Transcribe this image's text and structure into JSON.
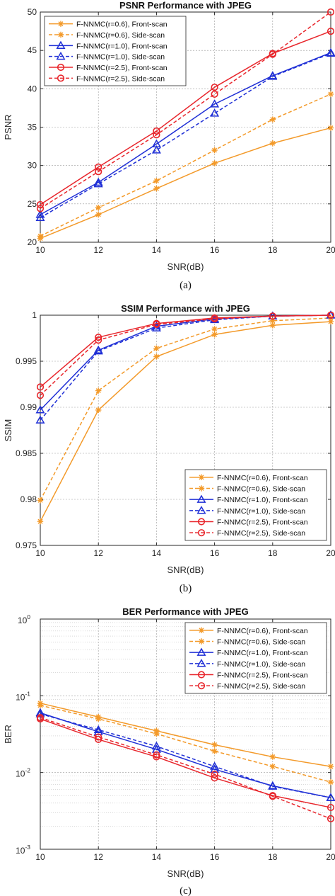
{
  "chart_data": [
    {
      "type": "line",
      "title": "PSNR Performance with JPEG",
      "xlabel": "SNR(dB)",
      "ylabel": "PSNR",
      "caption": "(a)",
      "x": [
        10,
        12,
        14,
        16,
        18,
        20
      ],
      "xticks": [
        "10",
        "12",
        "14",
        "16",
        "18",
        "20"
      ],
      "ylim": [
        20,
        50
      ],
      "yscale": "linear",
      "yticks": [
        20,
        25,
        30,
        35,
        40,
        45,
        50
      ],
      "yticklabels": [
        "20",
        "25",
        "30",
        "35",
        "40",
        "45",
        "50"
      ],
      "grid": true,
      "legend_position": "top-left",
      "series": [
        {
          "name": "F-NNMC(r=0.6), Front-scan",
          "color": "#F39A2A",
          "marker": "star",
          "dash": "solid",
          "values": [
            20.5,
            23.6,
            27.0,
            30.3,
            32.9,
            34.9
          ]
        },
        {
          "name": "F-NNMC(r=0.6), Side-scan",
          "color": "#F39A2A",
          "marker": "star",
          "dash": "dashed",
          "values": [
            20.8,
            24.5,
            28.0,
            32.0,
            36.0,
            39.3
          ]
        },
        {
          "name": "F-NNMC(r=1.0), Front-scan",
          "color": "#1F2FD6",
          "marker": "triangle",
          "dash": "solid",
          "values": [
            23.6,
            27.8,
            32.8,
            38.0,
            41.7,
            44.7
          ]
        },
        {
          "name": "F-NNMC(r=1.0), Side-scan",
          "color": "#1F2FD6",
          "marker": "triangle",
          "dash": "dashed",
          "values": [
            23.2,
            27.6,
            32.0,
            36.8,
            41.6,
            44.6
          ]
        },
        {
          "name": "F-NNMC(r=2.5), Front-scan",
          "color": "#E8262C",
          "marker": "circle",
          "dash": "solid",
          "values": [
            24.9,
            29.8,
            34.5,
            40.2,
            44.6,
            47.5
          ]
        },
        {
          "name": "F-NNMC(r=2.5), Side-scan",
          "color": "#E8262C",
          "marker": "circle",
          "dash": "dashed",
          "values": [
            24.4,
            29.2,
            34.0,
            39.3,
            44.5,
            50.0
          ]
        }
      ]
    },
    {
      "type": "line",
      "title": "SSIM Performance with JPEG",
      "xlabel": "SNR(dB)",
      "ylabel": "SSIM",
      "caption": "(b)",
      "x": [
        10,
        12,
        14,
        16,
        18,
        20
      ],
      "xticks": [
        "10",
        "12",
        "14",
        "16",
        "18",
        "20"
      ],
      "ylim": [
        0.975,
        1.0
      ],
      "yscale": "linear",
      "yticks": [
        0.975,
        0.98,
        0.985,
        0.99,
        0.995,
        1.0
      ],
      "yticklabels": [
        "0.975",
        "0.98",
        "0.985",
        "0.99",
        "0.995",
        "1"
      ],
      "grid": true,
      "legend_position": "bottom-right",
      "series": [
        {
          "name": "F-NNMC(r=0.6), Front-scan",
          "color": "#F39A2A",
          "marker": "star",
          "dash": "solid",
          "values": [
            0.9776,
            0.9897,
            0.9955,
            0.9979,
            0.9989,
            0.9993
          ]
        },
        {
          "name": "F-NNMC(r=0.6), Side-scan",
          "color": "#F39A2A",
          "marker": "star",
          "dash": "dashed",
          "values": [
            0.9799,
            0.9918,
            0.9964,
            0.9985,
            0.9994,
            0.9997
          ]
        },
        {
          "name": "F-NNMC(r=1.0), Front-scan",
          "color": "#1F2FD6",
          "marker": "triangle",
          "dash": "solid",
          "values": [
            0.9897,
            0.9962,
            0.9988,
            0.9996,
            0.9999,
            1.0
          ]
        },
        {
          "name": "F-NNMC(r=1.0), Side-scan",
          "color": "#1F2FD6",
          "marker": "triangle",
          "dash": "dashed",
          "values": [
            0.9886,
            0.9961,
            0.9986,
            0.9995,
            0.9999,
            1.0
          ]
        },
        {
          "name": "F-NNMC(r=2.5), Front-scan",
          "color": "#E8262C",
          "marker": "circle",
          "dash": "solid",
          "values": [
            0.9922,
            0.9976,
            0.9991,
            0.9997,
            0.9999,
            1.0
          ]
        },
        {
          "name": "F-NNMC(r=2.5), Side-scan",
          "color": "#E8262C",
          "marker": "circle",
          "dash": "dashed",
          "values": [
            0.9913,
            0.9973,
            0.999,
            0.9996,
            0.9999,
            1.0
          ]
        }
      ]
    },
    {
      "type": "line",
      "title": "BER Performance with JPEG",
      "xlabel": "SNR(dB)",
      "ylabel": "BER",
      "caption": "(c)",
      "x": [
        10,
        12,
        14,
        16,
        18,
        20
      ],
      "xticks": [
        "10",
        "12",
        "14",
        "16",
        "18",
        "20"
      ],
      "ylim": [
        0.001,
        1
      ],
      "yscale": "log",
      "yticks": [
        0.001,
        0.01,
        0.1,
        1
      ],
      "ytick_base": [
        "10",
        "10",
        "10",
        "10"
      ],
      "ytick_exp": [
        "-3",
        "-2",
        "-1",
        "0"
      ],
      "grid": true,
      "legend_position": "top-right",
      "series": [
        {
          "name": "F-NNMC(r=0.6), Front-scan",
          "color": "#F39A2A",
          "marker": "star",
          "dash": "solid",
          "values": [
            0.08,
            0.053,
            0.035,
            0.023,
            0.016,
            0.012
          ]
        },
        {
          "name": "F-NNMC(r=0.6), Side-scan",
          "color": "#F39A2A",
          "marker": "star",
          "dash": "dashed",
          "values": [
            0.075,
            0.05,
            0.032,
            0.019,
            0.012,
            0.0075
          ]
        },
        {
          "name": "F-NNMC(r=1.0), Front-scan",
          "color": "#1F2FD6",
          "marker": "triangle",
          "dash": "solid",
          "values": [
            0.06,
            0.034,
            0.02,
            0.011,
            0.0067,
            0.0047
          ]
        },
        {
          "name": "F-NNMC(r=1.0), Side-scan",
          "color": "#1F2FD6",
          "marker": "triangle",
          "dash": "dashed",
          "values": [
            0.058,
            0.036,
            0.022,
            0.012,
            0.0066,
            0.0047
          ]
        },
        {
          "name": "F-NNMC(r=2.5), Front-scan",
          "color": "#E8262C",
          "marker": "circle",
          "dash": "solid",
          "values": [
            0.05,
            0.027,
            0.016,
            0.0085,
            0.005,
            0.0035
          ]
        },
        {
          "name": "F-NNMC(r=2.5), Side-scan",
          "color": "#E8262C",
          "marker": "circle",
          "dash": "dashed",
          "values": [
            0.052,
            0.029,
            0.017,
            0.0095,
            0.0049,
            0.0025
          ]
        }
      ]
    }
  ]
}
